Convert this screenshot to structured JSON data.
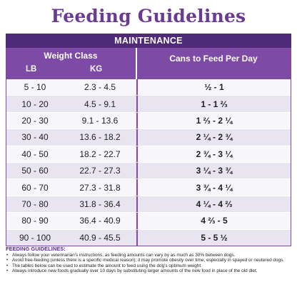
{
  "title": "Feeding Guidelines",
  "table": {
    "section": "MAINTENANCE",
    "weight_class": "Weight Class",
    "lb_header": "LB",
    "kg_header": "KG",
    "cans_header": "Cans to Feed Per Day",
    "rows": [
      {
        "lb": "5 - 10",
        "kg": "2.3 - 4.5",
        "cans": "½ - 1"
      },
      {
        "lb": "10 - 20",
        "kg": "4.5 - 9.1",
        "cans": "1 - 1 ⅔"
      },
      {
        "lb": "20 - 30",
        "kg": "9.1 - 13.6",
        "cans": "1 ⅔ - 2 ¼"
      },
      {
        "lb": "30 - 40",
        "kg": "13.6 - 18.2",
        "cans": "2 ¼ - 2 ¾"
      },
      {
        "lb": "40 - 50",
        "kg": "18.2 - 22.7",
        "cans": "2 ¾ - 3 ¼"
      },
      {
        "lb": "50 - 60",
        "kg": "22.7 - 27.3",
        "cans": "3 ¼ - 3 ¾"
      },
      {
        "lb": "60 - 70",
        "kg": "27.3 - 31.8",
        "cans": "3 ¾ - 4 ¼"
      },
      {
        "lb": "70 - 80",
        "kg": "31.8 - 36.4",
        "cans": "4 ¼ - 4 ⅔"
      },
      {
        "lb": "80 - 90",
        "kg": "36.4 - 40.9",
        "cans": "4 ⅔ - 5"
      },
      {
        "lb": "90 - 100",
        "kg": "40.9 - 45.5",
        "cans": "5 - 5 ½"
      }
    ]
  },
  "notes": {
    "title": "FEEDING GUIDELINES:",
    "items": [
      "Always follow your veterinarian's instructions, as feeding amounts can vary by as much as 30% between dogs.",
      "Avoid free-feeding (unless there is a specific medical reason); it may promote obesity over time, especially in spayed or neutered dogs.",
      "The tables below can be used to estimate the amount to feed using the dog's optimum weight.",
      "Always introduce new foods gradually over 10 days by substituting larger amounts of the new food in place of the old diet."
    ]
  },
  "colors": {
    "title": "#6b3a93",
    "header_dark": "#4f2a78",
    "header": "#7d4aa6"
  }
}
